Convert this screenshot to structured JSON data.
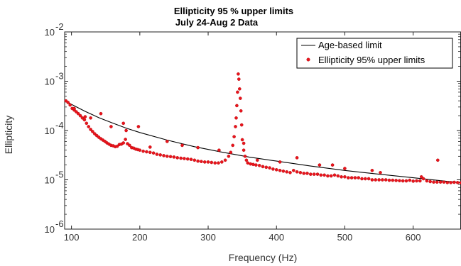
{
  "chart_data": {
    "type": "scatter",
    "title": "Ellipticity 95 % upper limits",
    "subtitle": "July 24-Aug 2 Data",
    "xlabel": "Frequency (Hz)",
    "ylabel": "Ellipticity",
    "xlim": [
      90,
      670
    ],
    "ylim": [
      1e-06,
      0.01
    ],
    "yscale": "log",
    "x_ticks": [
      100,
      200,
      300,
      400,
      500,
      600
    ],
    "x_tick_labels": [
      "100",
      "200",
      "300",
      "400",
      "500",
      "600"
    ],
    "y_ticks": [
      1e-06,
      1e-05,
      0.0001,
      0.001,
      0.01
    ],
    "y_tick_labels": [
      {
        "base": "10",
        "exp": "-6"
      },
      {
        "base": "10",
        "exp": "-5"
      },
      {
        "base": "10",
        "exp": "-4"
      },
      {
        "base": "10",
        "exp": "-3"
      },
      {
        "base": "10",
        "exp": "-2"
      }
    ],
    "legend_position": "top-right",
    "series": [
      {
        "name": "Age-based limit",
        "style": "line",
        "color": "#000000",
        "x": [
          90,
          100,
          120,
          140,
          160,
          180,
          200,
          240,
          280,
          320,
          360,
          400,
          450,
          500,
          550,
          600,
          650,
          670
        ],
        "y": [
          0.00041,
          0.00034,
          0.000245,
          0.000182,
          0.000142,
          0.000112,
          9.1e-05,
          6.4e-05,
          4.7e-05,
          3.65e-05,
          2.9e-05,
          2.4e-05,
          1.9e-05,
          1.55e-05,
          1.3e-05,
          1.1e-05,
          9.3e-06,
          8.8e-06
        ]
      },
      {
        "name": "Ellipticity 95% upper limits",
        "style": "markers",
        "color": "#e8141d",
        "x": [
          92,
          95,
          98,
          101,
          104,
          107,
          110,
          113,
          116,
          119,
          122,
          125,
          128,
          131,
          134,
          137,
          140,
          143,
          146,
          149,
          152,
          155,
          158,
          161,
          164,
          167,
          170,
          173,
          176,
          179,
          182,
          185,
          188,
          191,
          194,
          197,
          200,
          205,
          210,
          215,
          220,
          225,
          230,
          235,
          240,
          245,
          250,
          255,
          260,
          265,
          270,
          275,
          280,
          285,
          290,
          295,
          300,
          305,
          310,
          315,
          320,
          325,
          330,
          333,
          336,
          338,
          340,
          341,
          342,
          343,
          344,
          345,
          346,
          347,
          348,
          349,
          350,
          352,
          354,
          356,
          358,
          362,
          366,
          370,
          375,
          380,
          385,
          390,
          395,
          400,
          405,
          410,
          415,
          420,
          425,
          430,
          435,
          440,
          445,
          450,
          455,
          460,
          465,
          470,
          475,
          480,
          485,
          490,
          495,
          500,
          505,
          510,
          515,
          520,
          525,
          530,
          535,
          540,
          545,
          550,
          555,
          560,
          565,
          570,
          575,
          580,
          585,
          590,
          595,
          600,
          605,
          610,
          615,
          620,
          625,
          630,
          635,
          640,
          645,
          650,
          655,
          660,
          665,
          670,
          104,
          120,
          128,
          143,
          158,
          176,
          180,
          198,
          215,
          240,
          262,
          285,
          316,
          352,
          372,
          405,
          430,
          463,
          482,
          500,
          540,
          552,
          612,
          636
        ],
        "y": [
          0.0004,
          0.00037,
          0.00033,
          0.00028,
          0.00026,
          0.00024,
          0.00022,
          0.0002,
          0.00018,
          0.000165,
          0.00014,
          0.00012,
          0.000105,
          9.5e-05,
          8.6e-05,
          7.9e-05,
          7.3e-05,
          6.8e-05,
          6.4e-05,
          6e-05,
          5.6e-05,
          5.3e-05,
          5e-05,
          4.9e-05,
          4.7e-05,
          4.8e-05,
          5.2e-05,
          5.3e-05,
          5.6e-05,
          6.6e-05,
          5.4e-05,
          5e-05,
          4.5e-05,
          4.4e-05,
          4.2e-05,
          4.1e-05,
          4e-05,
          3.8e-05,
          3.7e-05,
          3.6e-05,
          3.5e-05,
          3.3e-05,
          3.2e-05,
          3.1e-05,
          3e-05,
          2.95e-05,
          2.9e-05,
          2.8e-05,
          2.75e-05,
          2.7e-05,
          2.65e-05,
          2.6e-05,
          2.5e-05,
          2.4e-05,
          2.35e-05,
          2.3e-05,
          2.3e-05,
          2.25e-05,
          2.2e-05,
          2.2e-05,
          2.3e-05,
          2.5e-05,
          3e-05,
          3.6e-05,
          5e-05,
          7.5e-05,
          0.00012,
          0.00018,
          0.00032,
          0.0006,
          0.0014,
          0.0011,
          0.0007,
          0.00045,
          0.00025,
          0.00013,
          6.5e-05,
          4e-05,
          3e-05,
          2.5e-05,
          2.2e-05,
          2.1e-05,
          2.05e-05,
          2e-05,
          1.95e-05,
          1.85e-05,
          1.8e-05,
          1.75e-05,
          1.65e-05,
          1.6e-05,
          1.55e-05,
          1.5e-05,
          1.45e-05,
          1.4e-05,
          1.55e-05,
          1.45e-05,
          1.4e-05,
          1.35e-05,
          1.35e-05,
          1.3e-05,
          1.3e-05,
          1.3e-05,
          1.25e-05,
          1.25e-05,
          1.2e-05,
          1.2e-05,
          1.25e-05,
          1.2e-05,
          1.15e-05,
          1.15e-05,
          1.1e-05,
          1.1e-05,
          1.1e-05,
          1.1e-05,
          1.05e-05,
          1.05e-05,
          1.05e-05,
          1e-05,
          1e-05,
          1e-05,
          1e-05,
          1e-05,
          9.8e-06,
          9.8e-06,
          9.7e-06,
          9.6e-06,
          9.5e-06,
          9.5e-06,
          9.8e-06,
          9.4e-06,
          9.5e-06,
          9.5e-06,
          1.05e-05,
          9.5e-06,
          9.2e-06,
          9e-06,
          9e-06,
          9e-06,
          9e-06,
          8.8e-06,
          8.8e-06,
          8.9e-06,
          8.8e-06,
          8.7e-06,
          0.00028,
          0.00019,
          0.00018,
          0.00022,
          0.00012,
          0.00014,
          0.0001,
          0.00012,
          4.6e-05,
          6e-05,
          5e-05,
          4.5e-05,
          4e-05,
          5.5e-05,
          2.5e-05,
          2.3e-05,
          2.8e-05,
          2e-05,
          2e-05,
          1.7e-05,
          1.55e-05,
          1.4e-05,
          1.15e-05,
          2.5e-05
        ]
      }
    ]
  }
}
